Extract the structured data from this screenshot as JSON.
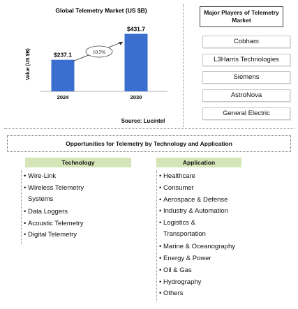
{
  "chart_data": {
    "type": "bar",
    "title": "Global Telemetry Market (US $B)",
    "ylabel": "Value (US $B)",
    "xlabel": "",
    "categories": [
      "2024",
      "2030"
    ],
    "values": [
      237.1,
      431.7
    ],
    "value_labels": [
      "$237.1",
      "$431.7"
    ],
    "ylim": [
      0,
      500
    ],
    "growth_annotation": "10.5%",
    "source": "Source: Lucintel",
    "bar_color": "#3a6fcf",
    "grid": false
  },
  "players": {
    "title": "Major Players of Telemetry Market",
    "items": [
      "Cobham",
      "L3Harris Technologies",
      "Siemens",
      "AstroNova",
      "General Electric"
    ]
  },
  "opportunities": {
    "title": "Opportunities for Telemetry by Technology and Application"
  },
  "technology": {
    "header": "Technology",
    "items": [
      "Wire-Link",
      "Wireless Telemetry Systems",
      "Data Loggers",
      "Acoustic Telemetry",
      "Digital Telemetry"
    ]
  },
  "application": {
    "header": "Application",
    "items": [
      "Healthcare",
      "Consumer",
      "Aerospace & Defense",
      "Industry & Automation",
      "Logistics & Transportation",
      "Marine & Oceanography",
      "Energy & Power",
      "Oil & Gas",
      "Hydrography",
      "Others"
    ]
  },
  "colors": {
    "header_fill": "#d4e6b8",
    "bar": "#3a6fcf"
  }
}
